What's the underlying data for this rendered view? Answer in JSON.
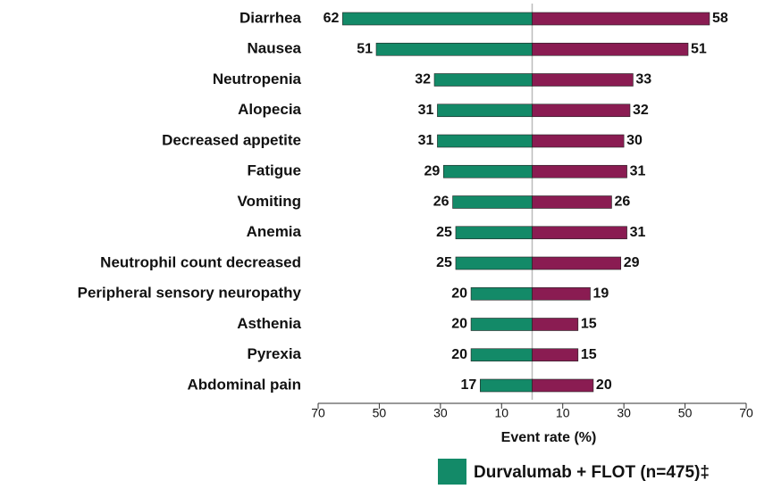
{
  "chart_data": {
    "type": "butterfly",
    "categories": [
      "Diarrhea",
      "Nausea",
      "Neutropenia",
      "Alopecia",
      "Decreased appetite",
      "Fatigue",
      "Vomiting",
      "Anemia",
      "Neutrophil count decreased",
      "Peripheral sensory neuropathy",
      "Asthenia",
      "Pyrexia",
      "Abdominal pain"
    ],
    "series": [
      {
        "name": "Durvalumab + FLOT (n=475)‡",
        "color": "#138a68",
        "values": [
          -62,
          -51,
          -32,
          -31,
          -31,
          -29,
          -26,
          -25,
          -25,
          -20,
          -20,
          -20,
          -17
        ],
        "value_labels": [
          "62",
          "51",
          "32",
          "31",
          "31",
          "29",
          "26",
          "25",
          "25",
          "20",
          "20",
          "20",
          "17"
        ]
      },
      {
        "color": "#8a1c52",
        "values": [
          58,
          51,
          33,
          32,
          30,
          31,
          26,
          31,
          29,
          19,
          15,
          15,
          20
        ]
      }
    ],
    "x_label": "Event rate (%)",
    "xlim": [
      -70,
      70
    ],
    "xticks": [
      {
        "value": -70,
        "label": "70"
      },
      {
        "value": -50,
        "label": "50"
      },
      {
        "value": -30,
        "label": "30"
      },
      {
        "value": -10,
        "label": "10"
      },
      10,
      30,
      50,
      70
    ]
  }
}
